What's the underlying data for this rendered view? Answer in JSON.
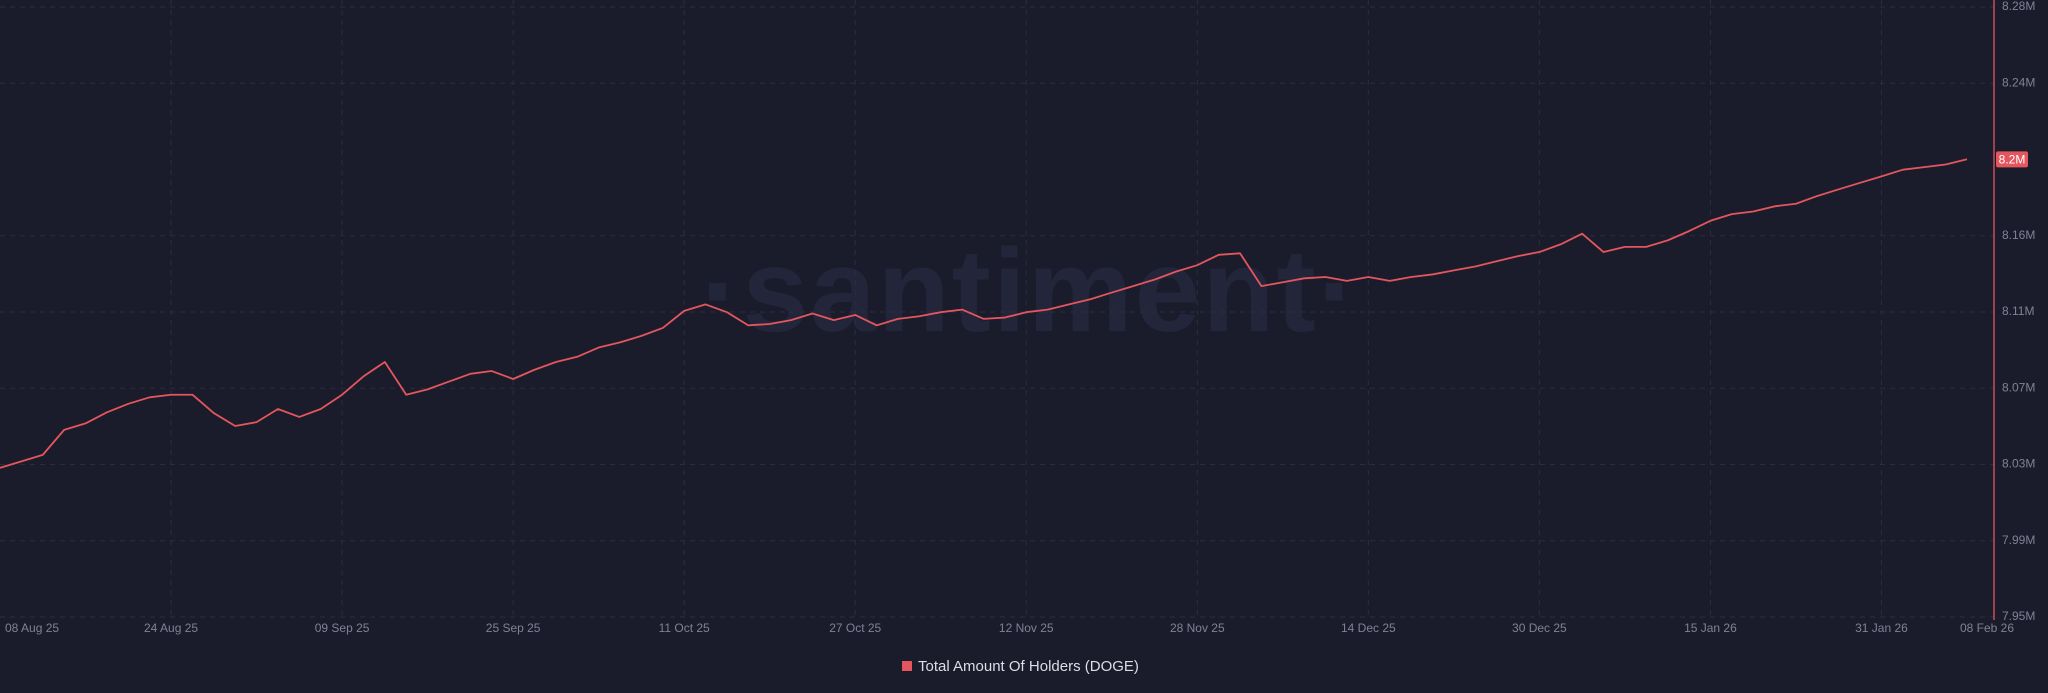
{
  "chart_data": {
    "type": "line",
    "watermark": "·santiment·",
    "x": [
      "08 Aug 25",
      "10 Aug 25",
      "12 Aug 25",
      "14 Aug 25",
      "16 Aug 25",
      "18 Aug 25",
      "20 Aug 25",
      "22 Aug 25",
      "24 Aug 25",
      "26 Aug 25",
      "28 Aug 25",
      "30 Aug 25",
      "01 Sep 25",
      "03 Sep 25",
      "05 Sep 25",
      "07 Sep 25",
      "09 Sep 25",
      "11 Sep 25",
      "13 Sep 25",
      "15 Sep 25",
      "17 Sep 25",
      "19 Sep 25",
      "21 Sep 25",
      "23 Sep 25",
      "25 Sep 25",
      "27 Sep 25",
      "29 Sep 25",
      "01 Oct 25",
      "03 Oct 25",
      "05 Oct 25",
      "07 Oct 25",
      "09 Oct 25",
      "11 Oct 25",
      "13 Oct 25",
      "15 Oct 25",
      "17 Oct 25",
      "19 Oct 25",
      "21 Oct 25",
      "23 Oct 25",
      "25 Oct 25",
      "27 Oct 25",
      "29 Oct 25",
      "31 Oct 25",
      "02 Nov 25",
      "04 Nov 25",
      "06 Nov 25",
      "08 Nov 25",
      "10 Nov 25",
      "12 Nov 25",
      "14 Nov 25",
      "16 Nov 25",
      "18 Nov 25",
      "20 Nov 25",
      "22 Nov 25",
      "24 Nov 25",
      "26 Nov 25",
      "28 Nov 25",
      "30 Nov 25",
      "02 Dec 25",
      "04 Dec 25",
      "06 Dec 25",
      "08 Dec 25",
      "10 Dec 25",
      "12 Dec 25",
      "14 Dec 25",
      "16 Dec 25",
      "18 Dec 25",
      "20 Dec 25",
      "22 Dec 25",
      "24 Dec 25",
      "26 Dec 25",
      "28 Dec 25",
      "30 Dec 25",
      "01 Jan 26",
      "03 Jan 26",
      "05 Jan 26",
      "07 Jan 26",
      "09 Jan 26",
      "11 Jan 26",
      "13 Jan 26",
      "15 Jan 26",
      "17 Jan 26",
      "19 Jan 26",
      "21 Jan 26",
      "23 Jan 26",
      "25 Jan 26",
      "27 Jan 26",
      "29 Jan 26",
      "31 Jan 26",
      "02 Feb 26",
      "04 Feb 26",
      "06 Feb 26",
      "08 Feb 26"
    ],
    "series": [
      {
        "name": "Total Amount Of Holders (DOGE)",
        "color": "#e3565e",
        "values": [
          8030600,
          8034100,
          8037600,
          8051100,
          8054600,
          8060600,
          8065200,
          8068700,
          8070100,
          8070100,
          8060200,
          8053200,
          8055300,
          8062400,
          8058100,
          8062400,
          8070100,
          8080000,
          8087800,
          8070100,
          8073000,
          8077200,
          8081400,
          8082900,
          8078600,
          8083600,
          8087800,
          8090600,
          8095600,
          8098400,
          8101900,
          8106200,
          8115400,
          8118900,
          8114700,
          8107600,
          8108300,
          8110400,
          8114000,
          8110400,
          8113200,
          8107600,
          8111100,
          8112500,
          8114700,
          8116100,
          8111100,
          8111800,
          8114700,
          8116100,
          8118900,
          8121700,
          8125300,
          8128800,
          8132300,
          8136600,
          8140100,
          8145700,
          8146500,
          8128800,
          8130900,
          8133000,
          8133700,
          8131600,
          8133700,
          8131600,
          8133700,
          8135100,
          8137300,
          8139400,
          8142200,
          8145000,
          8147200,
          8151400,
          8157100,
          8147200,
          8150000,
          8150000,
          8153500,
          8158500,
          8164100,
          8167700,
          8169100,
          8171900,
          8173300,
          8177500,
          8181100,
          8184600,
          8188100,
          8191700,
          8193100,
          8194500,
          8197300
        ]
      }
    ],
    "last_value_label": "8.2M",
    "ylim": [
      7950000,
      8279600
    ],
    "yticks": [
      {
        "value": 7950000,
        "label": "7.95M"
      },
      {
        "value": 7991200,
        "label": "7.99M"
      },
      {
        "value": 8032400,
        "label": "8.03M"
      },
      {
        "value": 8073600,
        "label": "8.07M"
      },
      {
        "value": 8114800,
        "label": "8.11M"
      },
      {
        "value": 8156000,
        "label": "8.16M"
      },
      {
        "value": 8238400,
        "label": "8.24M"
      },
      {
        "value": 8279600,
        "label": "8.28M"
      }
    ],
    "xticks": [
      "08 Aug 25",
      "24 Aug 25",
      "09 Sep 25",
      "25 Sep 25",
      "11 Oct 25",
      "27 Oct 25",
      "12 Nov 25",
      "28 Nov 25",
      "14 Dec 25",
      "30 Dec 25",
      "15 Jan 26",
      "31 Jan 26",
      "08 Feb 26"
    ],
    "grid": true
  }
}
